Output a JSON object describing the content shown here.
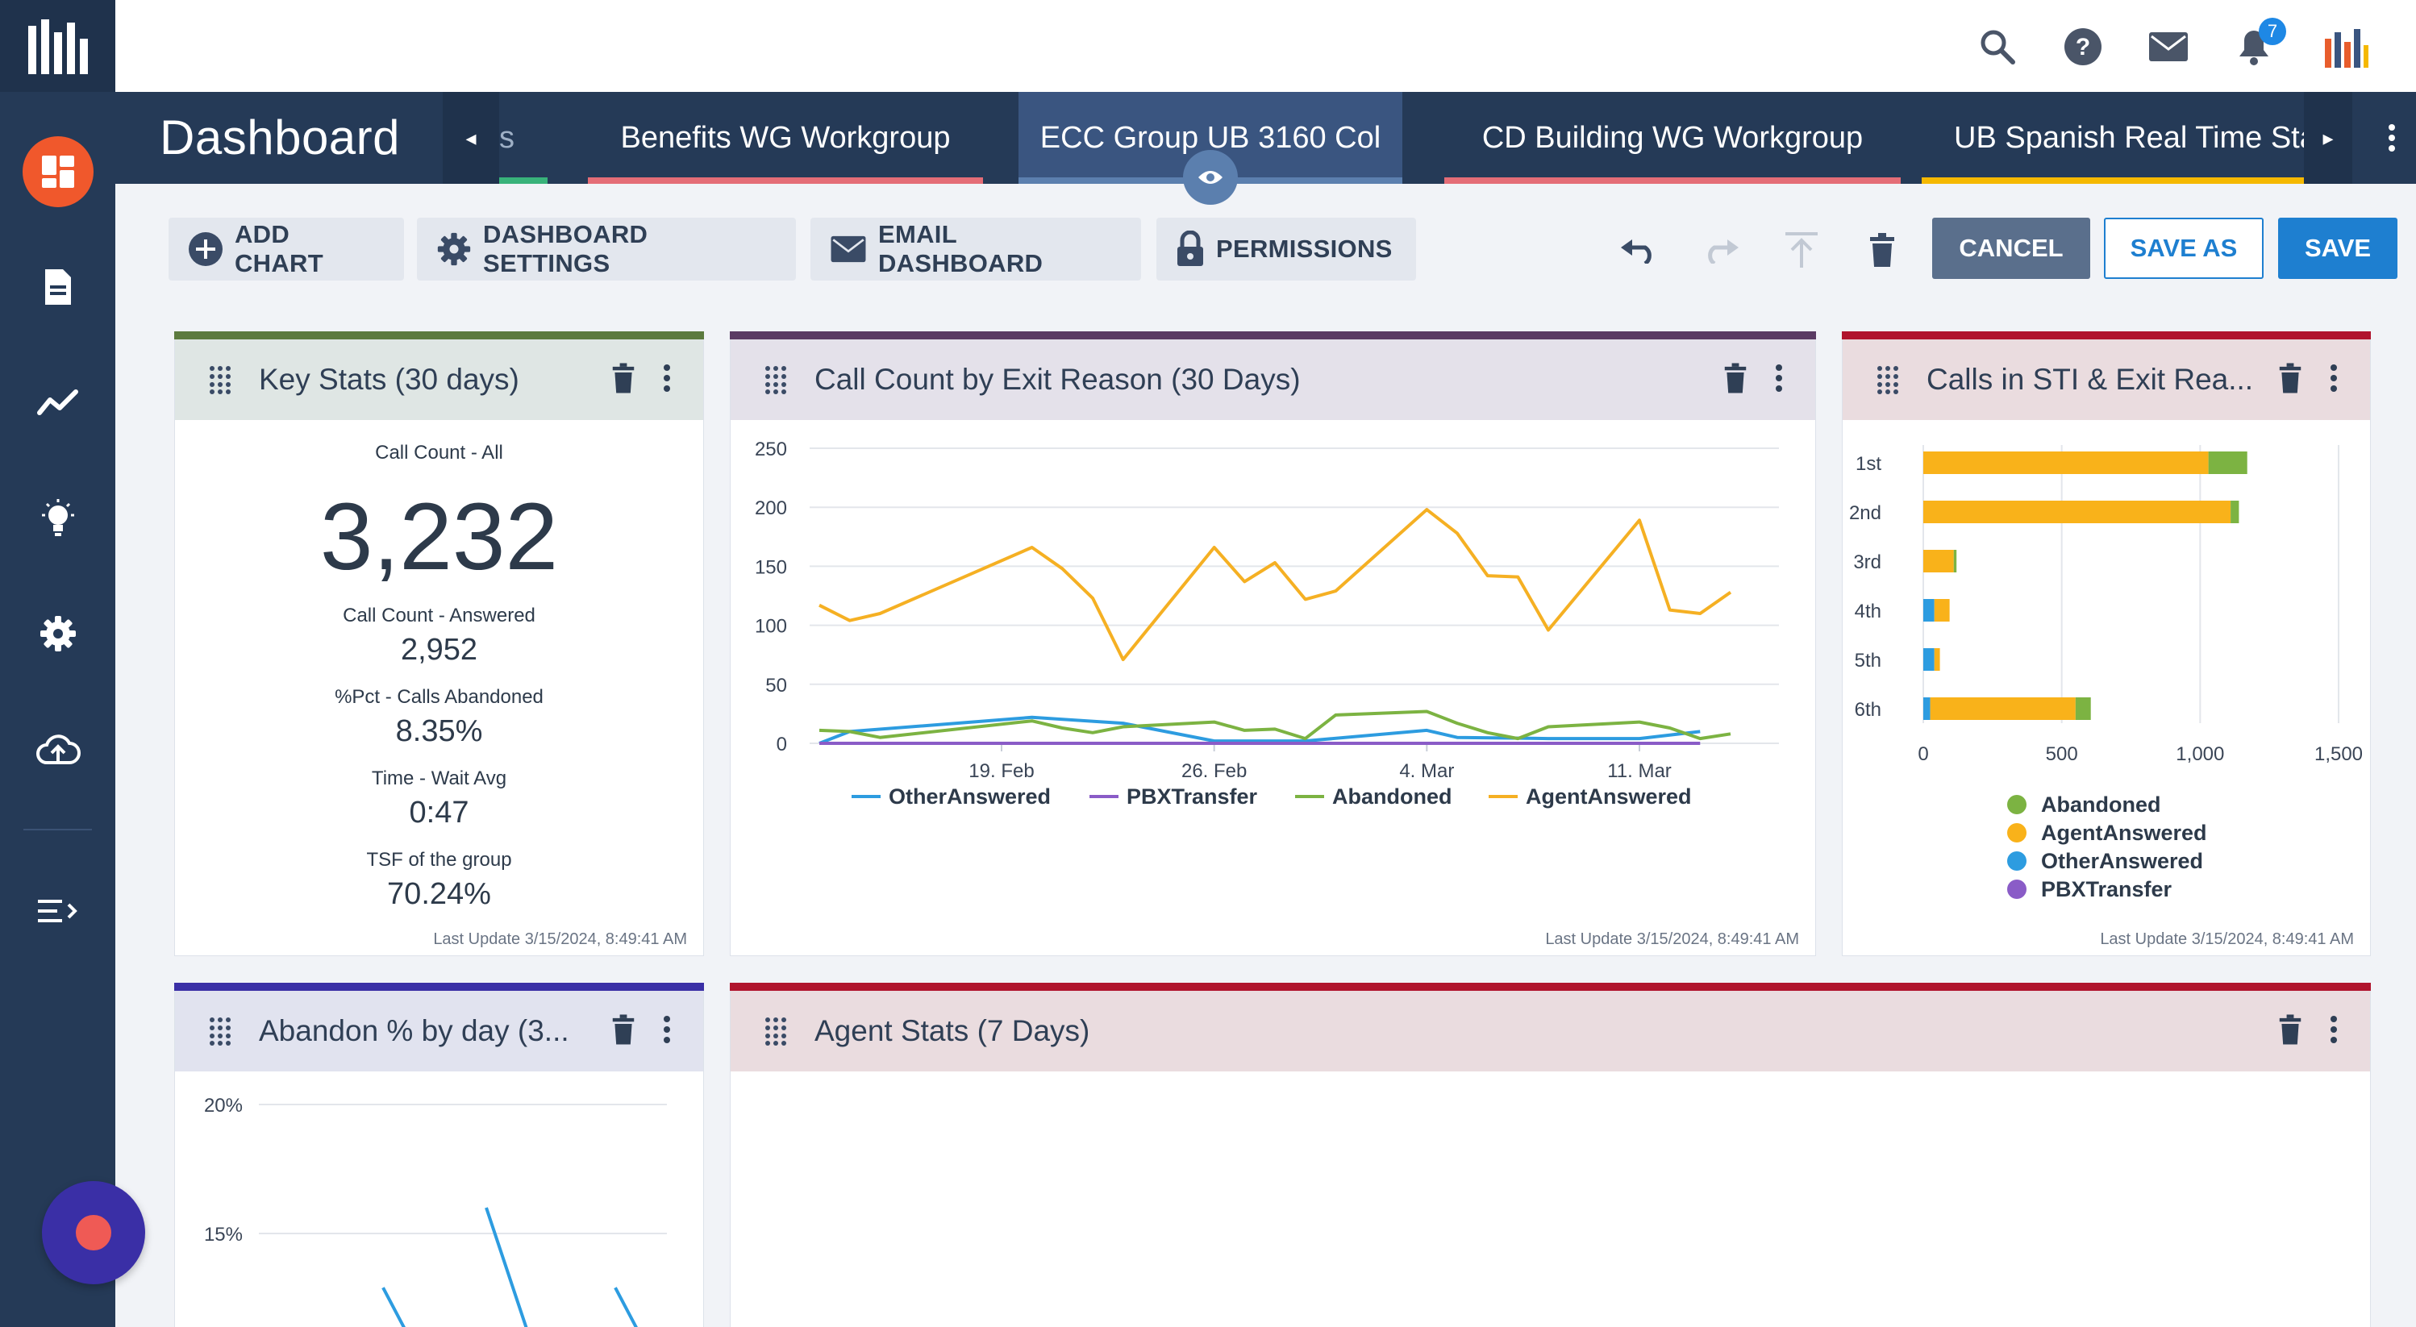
{
  "topbar": {
    "notification_count": "7"
  },
  "tabs": {
    "page_title": "Dashboard",
    "partial_tab": "s",
    "items": [
      {
        "label": "Benefits WG Workgroup",
        "underline": "#e46d77"
      },
      {
        "label": "ECC Group UB 3160 Col",
        "underline": "#5b7fae"
      },
      {
        "label": "CD Building WG Workgroup",
        "underline": "#e46d77"
      },
      {
        "label": "UB Spanish Real Time Stat",
        "underline": "#f5b800"
      }
    ]
  },
  "toolbar": {
    "add_chart": "ADD CHART",
    "dashboard_settings": "DASHBOARD SETTINGS",
    "email_dashboard": "EMAIL DASHBOARD",
    "permissions": "PERMISSIONS",
    "cancel": "CANCEL",
    "save_as": "SAVE AS",
    "save": "SAVE"
  },
  "widgets": {
    "key_stats": {
      "title": "Key Stats (30 days)",
      "color": "#5c7a3e",
      "header_bg": "#dfe6e4",
      "call_count_label": "Call Count - All",
      "call_count_value": "3,232",
      "answered_label": "Call Count - Answered",
      "answered_value": "2,952",
      "abandoned_label": "%Pct - Calls Abandoned",
      "abandoned_value": "8.35%",
      "wait_label": "Time - Wait Avg",
      "wait_value": "0:47",
      "tsf_label": "TSF of the group",
      "tsf_value": "70.24%",
      "last_update": "Last Update 3/15/2024, 8:49:41 AM"
    },
    "call_count": {
      "title": "Call Count by Exit Reason (30 Days)",
      "color": "#5a3a63",
      "header_bg": "#e4e1ea",
      "last_update": "Last Update 3/15/2024, 8:49:41 AM"
    },
    "calls_sti": {
      "title": "Calls in STI & Exit Rea...",
      "color": "#b0142d",
      "header_bg": "#eadcdf",
      "last_update": "Last Update 3/15/2024, 8:49:41 AM"
    },
    "abandon_pct": {
      "title": "Abandon % by day (3...",
      "color": "#3a2fa6",
      "header_bg": "#e1e3ef"
    },
    "agent_stats": {
      "title": "Agent Stats (7 Days)",
      "color": "#b0142d",
      "header_bg": "#eadcdf"
    }
  },
  "chart_data": [
    {
      "type": "line",
      "x_ticks": [
        "19. Feb",
        "26. Feb",
        "4. Mar",
        "11. Mar"
      ],
      "ylim": [
        0,
        250
      ],
      "y_ticks": [
        0,
        50,
        100,
        150,
        200,
        250
      ],
      "x": [
        "2024-02-13",
        "2024-02-14",
        "2024-02-15",
        "2024-02-16",
        "2024-02-17",
        "2024-02-18",
        "2024-02-19",
        "2024-02-20",
        "2024-02-21",
        "2024-02-22",
        "2024-02-23",
        "2024-02-24",
        "2024-02-25",
        "2024-02-26",
        "2024-02-27",
        "2024-02-28",
        "2024-02-29",
        "2024-03-01",
        "2024-03-02",
        "2024-03-03",
        "2024-03-04",
        "2024-03-05",
        "2024-03-06",
        "2024-03-07",
        "2024-03-08",
        "2024-03-09",
        "2024-03-10",
        "2024-03-11",
        "2024-03-12",
        "2024-03-13",
        "2024-03-14"
      ],
      "series": [
        {
          "name": "OtherAnswered",
          "color": "#2d9ce0",
          "values": [
            0,
            10,
            null,
            null,
            null,
            null,
            null,
            22,
            null,
            null,
            17,
            null,
            null,
            2,
            null,
            2,
            2,
            null,
            null,
            null,
            11,
            5,
            null,
            null,
            4,
            null,
            null,
            4,
            null,
            10,
            null
          ]
        },
        {
          "name": "PBXTransfer",
          "color": "#8a5cc7",
          "values": [
            0,
            0,
            null,
            null,
            null,
            null,
            null,
            0,
            null,
            null,
            0,
            null,
            null,
            0,
            null,
            0,
            0,
            null,
            null,
            null,
            0,
            0,
            null,
            null,
            0,
            null,
            null,
            0,
            null,
            0,
            null
          ]
        },
        {
          "name": "Abandoned",
          "color": "#7cb342",
          "values": [
            11,
            10,
            5,
            null,
            null,
            null,
            null,
            19,
            13,
            9,
            14,
            null,
            null,
            18,
            11,
            12,
            4,
            24,
            null,
            null,
            27,
            17,
            9,
            4,
            14,
            null,
            null,
            18,
            13,
            4,
            8
          ]
        },
        {
          "name": "AgentAnswered",
          "color": "#f5b023",
          "values": [
            117,
            104,
            110,
            null,
            null,
            null,
            null,
            166,
            148,
            123,
            71,
            null,
            null,
            166,
            137,
            153,
            122,
            129,
            null,
            null,
            198,
            178,
            142,
            141,
            96,
            null,
            null,
            189,
            113,
            110,
            128
          ]
        }
      ]
    },
    {
      "type": "bar",
      "orientation": "horizontal",
      "stacked": true,
      "categories": [
        "1st",
        "2nd",
        "3rd",
        "4th",
        "5th",
        "6th"
      ],
      "xlim": [
        0,
        1500
      ],
      "x_ticks": [
        "0",
        "500",
        "1,000",
        "1,500"
      ],
      "series": [
        {
          "name": "Abandoned",
          "color": "#7cb342",
          "values": [
            140,
            30,
            10,
            0,
            0,
            55
          ]
        },
        {
          "name": "AgentAnswered",
          "color": "#f9b21a",
          "values": [
            1030,
            1110,
            110,
            55,
            20,
            525
          ]
        },
        {
          "name": "OtherAnswered",
          "color": "#2d9ce0",
          "values": [
            0,
            0,
            0,
            40,
            40,
            25
          ]
        },
        {
          "name": "PBXTransfer",
          "color": "#8a5cc7",
          "values": [
            0,
            0,
            0,
            0,
            0,
            0
          ]
        }
      ]
    },
    {
      "type": "line",
      "y_ticks": [
        "20%",
        "15%"
      ],
      "ylim": [
        0.1,
        0.2
      ],
      "series": [
        {
          "name": "",
          "color": "#2d9ce0",
          "values": [
            null,
            null,
            null,
            null,
            0.129,
            0.11,
            0.1,
            null,
            0.16,
            0.13,
            0.1,
            null,
            null,
            0.129,
            0.11,
            0.1
          ]
        }
      ]
    }
  ]
}
